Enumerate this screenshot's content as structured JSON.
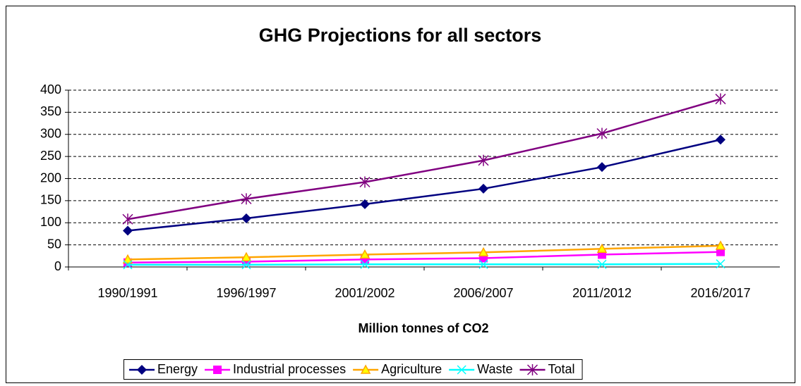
{
  "chart_data": {
    "type": "line",
    "title": "GHG Projections for all sectors",
    "x_label": "Million tonnes of CO2",
    "categories": [
      "1990/1991",
      "1996/1997",
      "2001/2002",
      "2006/2007",
      "2011/2012",
      "2016/2017"
    ],
    "series": [
      {
        "name": "Energy",
        "color": "#000080",
        "marker": "diamond",
        "values": [
          82,
          110,
          142,
          177,
          226,
          288
        ]
      },
      {
        "name": "Industrial processes",
        "color": "#ff00ff",
        "marker": "square",
        "values": [
          10,
          12,
          17,
          20,
          28,
          34
        ]
      },
      {
        "name": "Agriculture",
        "color": "#ffa500",
        "marker": "triangle",
        "values": [
          17,
          22,
          28,
          33,
          41,
          48
        ]
      },
      {
        "name": "Waste",
        "color": "#00ffff",
        "marker": "x",
        "values": [
          5,
          5,
          6,
          6,
          6,
          7
        ]
      },
      {
        "name": "Total",
        "color": "#800080",
        "marker": "star",
        "values": [
          108,
          154,
          192,
          241,
          302,
          380
        ]
      }
    ],
    "ylim": [
      0,
      400
    ],
    "yticks": [
      0,
      50,
      100,
      150,
      200,
      250,
      300,
      350,
      400
    ],
    "grid": true,
    "legend": "bottom"
  }
}
